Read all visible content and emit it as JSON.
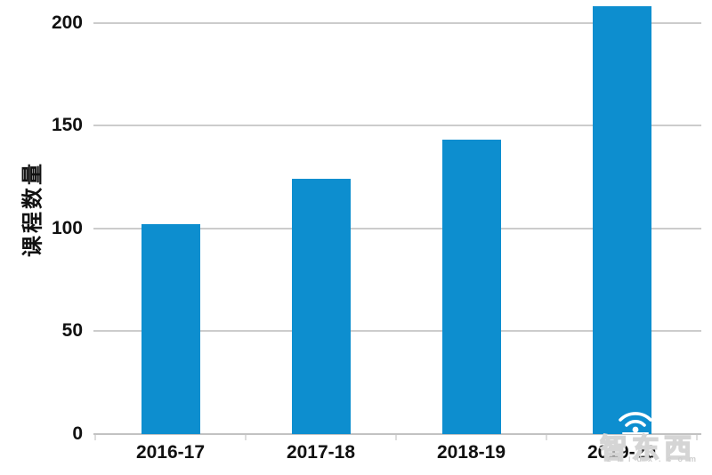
{
  "chart_data": {
    "type": "bar",
    "title": "",
    "ylabel": "课程数量",
    "xlabel": "",
    "categories": [
      "2016-17",
      "2017-18",
      "2018-19",
      "2019-20"
    ],
    "values": [
      102,
      124,
      143,
      208
    ],
    "yticks": [
      0,
      50,
      100,
      150,
      200
    ],
    "ylim": [
      0,
      210
    ],
    "grid": "horizontal gridlines at each y tick, full plot width",
    "legend_position": "none",
    "bar_color": "#0d8ecf",
    "gridline_color": "#cccccc",
    "axis_text_color": "#111111"
  },
  "watermark": {
    "brand": "智东西",
    "domain": "zhidx.com",
    "icon": "wifi-signal-icon"
  }
}
